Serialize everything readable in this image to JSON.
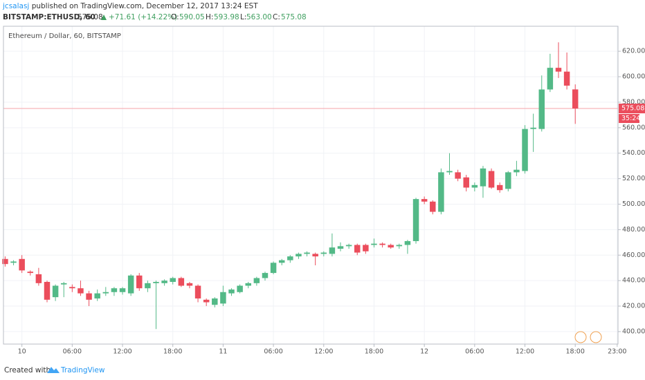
{
  "header": {
    "author": "jcsalasj",
    "published": "published on TradingView.com, December 12, 2017 13:24 EST",
    "symbol": "BITSTAMP:ETHUSD, 60",
    "last": "575.08",
    "change": "+71.61 (+14.22%)",
    "o_label": "O:",
    "o": "590.05",
    "h_label": "H:",
    "h": "593.98",
    "l_label": "L:",
    "l": "563.00",
    "c_label": "C:",
    "c": "575.08"
  },
  "chart_data": {
    "type": "candlestick",
    "title": "Ethereum / Dollar, 60, BITSTAMP",
    "x": [
      -2,
      -1,
      0,
      1,
      2,
      3,
      4,
      5,
      6,
      7,
      8,
      9,
      10,
      11,
      12,
      13,
      14,
      15,
      16,
      17,
      18,
      19,
      20,
      21,
      22,
      23,
      24,
      25,
      26,
      27,
      28,
      29,
      30,
      31,
      32,
      33,
      34,
      35,
      36,
      37,
      38,
      39,
      40,
      41,
      42,
      43,
      44,
      45,
      46,
      47,
      48,
      49,
      50,
      51,
      52,
      53,
      54,
      55,
      56,
      57,
      58,
      59,
      60,
      61,
      62,
      63,
      64,
      65,
      66
    ],
    "open": [
      457,
      454,
      457,
      447,
      445,
      439,
      427,
      437,
      435,
      434,
      430,
      426,
      430,
      431,
      431,
      430,
      444,
      434,
      438,
      438,
      439,
      442,
      438,
      436,
      425,
      421,
      422,
      430,
      431,
      436,
      438,
      442,
      446,
      454,
      456,
      459,
      461,
      461,
      461,
      461,
      465,
      467,
      468,
      468,
      468,
      469,
      468,
      467,
      468,
      471,
      504,
      502,
      494,
      525,
      525,
      521,
      513,
      514,
      526,
      515,
      512,
      525,
      526,
      559,
      559,
      590,
      607,
      604,
      590.05
    ],
    "high": [
      459,
      456,
      460,
      448,
      450,
      440,
      437,
      439,
      437,
      440,
      432,
      433,
      435,
      435,
      435,
      445,
      446,
      440,
      440,
      441,
      443,
      443,
      439,
      437,
      426,
      427,
      436,
      434,
      437,
      439,
      443,
      447,
      455,
      457,
      460,
      462,
      463,
      462,
      463,
      477,
      470,
      469,
      469,
      469,
      473,
      470,
      469,
      469,
      472,
      505,
      506,
      503,
      528,
      540,
      527,
      523,
      517,
      530,
      528,
      517,
      526,
      534,
      562,
      571,
      601,
      618,
      627,
      619,
      593.98
    ],
    "low": [
      451,
      452,
      446,
      444,
      436,
      423,
      424,
      427,
      431,
      428,
      420,
      424,
      428,
      428,
      429,
      428,
      432,
      431,
      402,
      436,
      437,
      435,
      434,
      423,
      420,
      419,
      420,
      428,
      430,
      434,
      436,
      440,
      445,
      452,
      454,
      457,
      459,
      452,
      459,
      459,
      463,
      465,
      460,
      461,
      466,
      466,
      465,
      465,
      461,
      469,
      500,
      492,
      492,
      523,
      518,
      510,
      510,
      505,
      512,
      509,
      510,
      522,
      524,
      541,
      557,
      588,
      599,
      590,
      563
    ],
    "close": [
      453,
      455,
      448,
      446,
      438,
      425,
      436,
      438,
      434,
      430,
      425,
      430,
      431,
      434,
      434,
      444,
      434,
      438,
      439,
      440,
      442,
      436,
      436,
      426,
      423,
      426,
      431,
      433,
      436,
      438,
      442,
      446,
      454,
      456,
      459,
      461,
      462,
      459,
      462,
      466,
      467,
      468,
      462,
      463,
      469,
      468,
      466,
      468,
      471,
      504,
      502,
      494,
      525,
      526,
      520,
      513,
      515,
      528,
      513,
      511,
      525,
      527,
      559,
      560,
      590,
      607,
      604,
      593,
      575.08
    ],
    "up_color": "#53b987",
    "down_color": "#eb4d5c",
    "last_price": 575.08,
    "last_price_label": "575.08",
    "countdown": "35:24",
    "xlim": [
      -2.2,
      71.1
    ],
    "xticks": [
      {
        "value": 0,
        "label": "10"
      },
      {
        "value": 6,
        "label": "06:00"
      },
      {
        "value": 12,
        "label": "12:00"
      },
      {
        "value": 18,
        "label": "18:00"
      },
      {
        "value": 24,
        "label": "11"
      },
      {
        "value": 30,
        "label": "06:00"
      },
      {
        "value": 36,
        "label": "12:00"
      },
      {
        "value": 42,
        "label": "18:00"
      },
      {
        "value": 48,
        "label": "12"
      },
      {
        "value": 54,
        "label": "06:00"
      },
      {
        "value": 60,
        "label": "12:00"
      },
      {
        "value": 66,
        "label": "18:00"
      },
      {
        "value": 71,
        "label": "23:00"
      }
    ],
    "ylim": [
      390.2,
      639.6
    ],
    "yticks": [
      {
        "value": 400,
        "label": "400.00"
      },
      {
        "value": 420,
        "label": "420.00"
      },
      {
        "value": 440,
        "label": "440.00"
      },
      {
        "value": 460,
        "label": "460.00"
      },
      {
        "value": 480,
        "label": "480.00"
      },
      {
        "value": 500,
        "label": "500.00"
      },
      {
        "value": 520,
        "label": "520.00"
      },
      {
        "value": 540,
        "label": "540.00"
      },
      {
        "value": 560,
        "label": "560.00"
      },
      {
        "value": 580,
        "label": "580.00"
      },
      {
        "value": 600,
        "label": "600.00"
      },
      {
        "value": 620,
        "label": "620.00"
      }
    ],
    "grid": true
  },
  "footer": {
    "created": "Created with",
    "brand": "TradingView"
  }
}
